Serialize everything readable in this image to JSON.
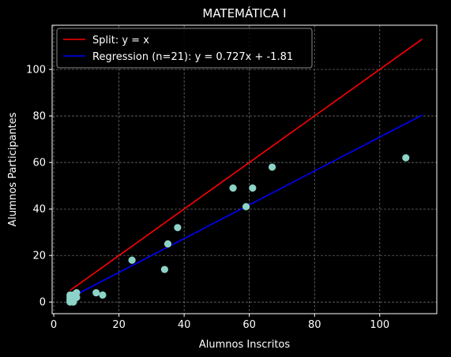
{
  "chart_data": {
    "type": "scatter",
    "title": "MATEMÁTICA I",
    "xlabel": "Alumnos Inscritos",
    "ylabel": "Alumnos Participantes",
    "xlim": [
      -0.5,
      117.5
    ],
    "ylim": [
      -5,
      119
    ],
    "xticks": [
      0,
      20,
      40,
      60,
      80,
      100
    ],
    "yticks": [
      0,
      20,
      40,
      60,
      80,
      100
    ],
    "grid": true,
    "legend_position": "top-left",
    "colors": {
      "background": "#000000",
      "points": "#8dd3c7",
      "split_line": "#ff0000",
      "regression_line": "#0000ff",
      "grid": "#7a7a7a",
      "text": "#ffffff"
    },
    "points": [
      {
        "x": 5,
        "y": 0
      },
      {
        "x": 5,
        "y": 1
      },
      {
        "x": 5,
        "y": 2
      },
      {
        "x": 5,
        "y": 3
      },
      {
        "x": 6,
        "y": 1
      },
      {
        "x": 6,
        "y": 2
      },
      {
        "x": 6,
        "y": 3
      },
      {
        "x": 7,
        "y": 2
      },
      {
        "x": 7,
        "y": 4
      },
      {
        "x": 13,
        "y": 4
      },
      {
        "x": 15,
        "y": 3
      },
      {
        "x": 24,
        "y": 18
      },
      {
        "x": 34,
        "y": 14
      },
      {
        "x": 35,
        "y": 25
      },
      {
        "x": 38,
        "y": 32
      },
      {
        "x": 55,
        "y": 49
      },
      {
        "x": 59,
        "y": 41
      },
      {
        "x": 61,
        "y": 49
      },
      {
        "x": 67,
        "y": 58
      },
      {
        "x": 108,
        "y": 62
      },
      {
        "x": 6,
        "y": 0
      }
    ],
    "lines": [
      {
        "name": "Split: y = x",
        "color": "#ff0000",
        "x": [
          5,
          113
        ],
        "y": [
          5,
          113
        ]
      },
      {
        "name": "Regression (n=21): y = 0.727x + -1.81",
        "color": "#0000ff",
        "x": [
          5,
          113
        ],
        "y": [
          1.825,
          80.341
        ]
      }
    ]
  }
}
